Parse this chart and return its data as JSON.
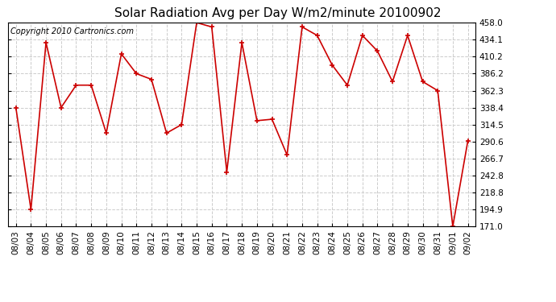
{
  "title": "Solar Radiation Avg per Day W/m2/minute 20100902",
  "copyright": "Copyright 2010 Cartronics.com",
  "dates": [
    "08/03",
    "08/04",
    "08/05",
    "08/06",
    "08/07",
    "08/08",
    "08/09",
    "08/10",
    "08/11",
    "08/12",
    "08/13",
    "08/14",
    "08/15",
    "08/16",
    "08/17",
    "08/18",
    "08/19",
    "08/20",
    "08/21",
    "08/22",
    "08/23",
    "08/24",
    "08/25",
    "08/26",
    "08/27",
    "08/28",
    "08/29",
    "08/30",
    "08/31",
    "09/01",
    "09/02"
  ],
  "values": [
    338.4,
    194.9,
    430.0,
    338.4,
    370.0,
    370.0,
    302.5,
    414.1,
    386.2,
    378.2,
    302.5,
    314.5,
    458.0,
    452.0,
    247.8,
    430.0,
    320.0,
    322.0,
    271.7,
    452.0,
    440.0,
    398.2,
    370.0,
    440.0,
    418.0,
    375.0,
    440.0,
    375.0,
    362.3,
    171.0,
    291.6
  ],
  "line_color": "#cc0000",
  "marker": "+",
  "marker_size": 5,
  "marker_linewidth": 1.2,
  "linewidth": 1.2,
  "ylim_min": 171.0,
  "ylim_max": 458.0,
  "yticks": [
    171.0,
    194.9,
    218.8,
    242.8,
    266.7,
    290.6,
    314.5,
    338.4,
    362.3,
    386.2,
    410.2,
    434.1,
    458.0
  ],
  "bg_color": "#ffffff",
  "grid_color": "#cccccc",
  "grid_linestyle": "--",
  "title_fontsize": 11,
  "copyright_fontsize": 7,
  "tick_fontsize": 7.5
}
